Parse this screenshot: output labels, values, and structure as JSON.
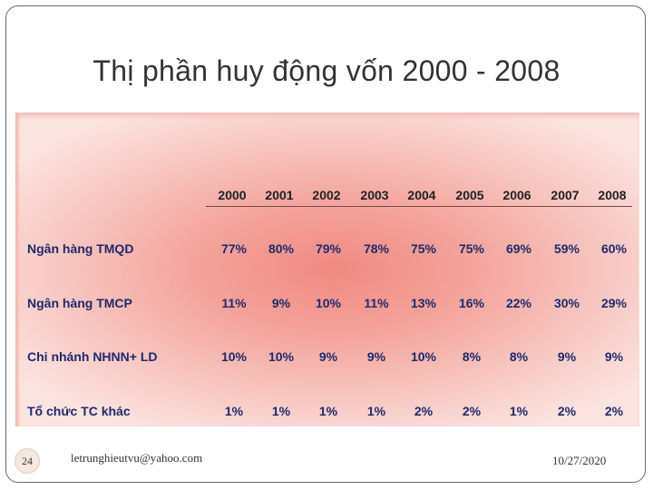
{
  "title": "Thị phần huy động vốn 2000 - 2008",
  "table": {
    "years": [
      "2000",
      "2001",
      "2002",
      "2003",
      "2004",
      "2005",
      "2006",
      "2007",
      "2008"
    ],
    "rows": [
      {
        "label": "Ngân hàng TMQD",
        "values": [
          "77%",
          "80%",
          "79%",
          "78%",
          "75%",
          "75%",
          "69%",
          "59%",
          "60%"
        ]
      },
      {
        "label": "Ngân hàng TMCP",
        "values": [
          "11%",
          "9%",
          "10%",
          "11%",
          "13%",
          "16%",
          "22%",
          "30%",
          "29%"
        ]
      },
      {
        "label": "Chi nhánh NHNN+ LD",
        "values": [
          "10%",
          "10%",
          "9%",
          "9%",
          "10%",
          "8%",
          "8%",
          "9%",
          "9%"
        ]
      },
      {
        "label": "Tổ chức TC khác",
        "values": [
          "1%",
          "1%",
          "1%",
          "1%",
          "2%",
          "2%",
          "1%",
          "2%",
          "2%"
        ]
      }
    ]
  },
  "footer": {
    "slide_number": "24",
    "email": "letrunghieutvu@yahoo.com",
    "date": "10/27/2020"
  },
  "colors": {
    "panel_center": "#f08a82",
    "panel_edge": "#fbe3e0",
    "text_navy": "#1f2a6b"
  }
}
